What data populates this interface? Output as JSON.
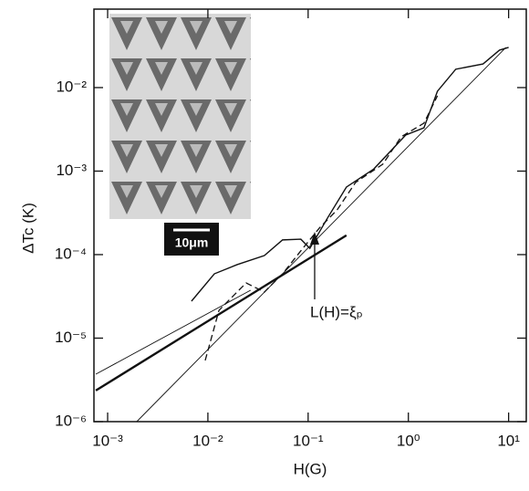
{
  "chart_data": {
    "type": "line",
    "xlabel": "H(G)",
    "ylabel": "ΔTc (K)",
    "xscale": "log",
    "yscale": "log",
    "xlim": [
      0.00073,
      15
    ],
    "ylim": [
      1e-06,
      0.087
    ],
    "xticks": [
      {
        "value": 0.001,
        "label": "10⁻³"
      },
      {
        "value": 0.01,
        "label": "10⁻²"
      },
      {
        "value": 0.1,
        "label": "10⁻¹"
      },
      {
        "value": 1,
        "label": "10⁰"
      },
      {
        "value": 10,
        "label": "10¹"
      }
    ],
    "yticks": [
      {
        "value": 1e-06,
        "label": "10⁻⁶"
      },
      {
        "value": 1e-05,
        "label": "10⁻⁵"
      },
      {
        "value": 0.0001,
        "label": "10⁻⁴"
      },
      {
        "value": 0.001,
        "label": "10⁻³"
      },
      {
        "value": 0.01,
        "label": "10⁻²"
      }
    ],
    "annotation": "L(H)=ξₚ",
    "inset_label": "10μm",
    "series": [
      {
        "color": "#111",
        "style": "solid",
        "x": [
          0.00686,
          0.0116,
          0.0196,
          0.0366,
          0.0556,
          0.0846,
          0.104,
          0.158,
          0.241,
          0.452,
          0.94,
          1.43,
          1.95,
          2.97,
          5.56,
          8.11,
          10
        ],
        "values": [
          2.77e-05,
          5.89e-05,
          7.59e-05,
          9.75e-05,
          0.00015,
          0.000153,
          0.000119,
          0.000281,
          0.000644,
          0.00106,
          0.0027,
          0.0033,
          0.00904,
          0.0166,
          0.0192,
          0.0281,
          0.0303
        ]
      },
      {
        "color": "#111",
        "style": "dashed",
        "x": [
          0.0094,
          0.0129,
          0.0176,
          0.0241,
          0.0366,
          0.0556,
          0.0846,
          0.129,
          0.195,
          0.297,
          0.556,
          0.846,
          1.43,
          1.95
        ],
        "values": [
          5.4e-06,
          2.15e-05,
          3.14e-05,
          4.58e-05,
          3.56e-05,
          5.89e-05,
          0.000111,
          0.000207,
          0.000344,
          0.00073,
          0.00121,
          0.00257,
          0.00375,
          0.00798
        ]
      },
      {
        "color": "#111",
        "style": "thin",
        "x": [
          0.00195,
          9.4
        ],
        "values": [
          1e-06,
          0.0303
        ]
      },
      {
        "color": "#111",
        "style": "thin",
        "x": [
          0.000762,
          0.0267
        ],
        "values": [
          3.7e-06,
          3.75e-05
        ]
      },
      {
        "color": "#111",
        "style": "thick",
        "x": [
          0.000762,
          0.241
        ],
        "values": [
          2.36e-06,
          0.00017
        ]
      }
    ]
  }
}
